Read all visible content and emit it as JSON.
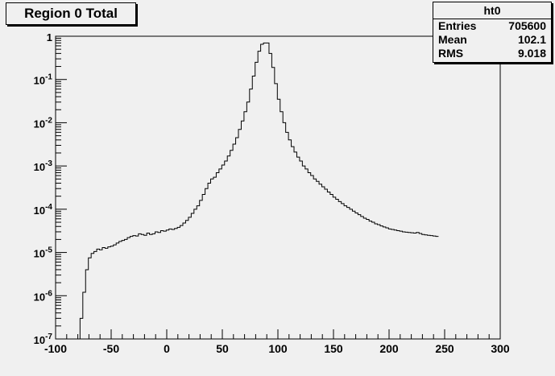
{
  "title": "Region 0 Total",
  "stats": {
    "name": "ht0",
    "rows": [
      {
        "label": "Entries",
        "value": "705600"
      },
      {
        "label": "Mean",
        "value": "102.1"
      },
      {
        "label": "RMS",
        "value": "9.018"
      }
    ]
  },
  "chart_data": {
    "type": "histogram",
    "title": "Region 0 Total",
    "xlim": [
      -100,
      300
    ],
    "ylim": [
      1e-07,
      1
    ],
    "ylog": true,
    "xticks": [
      -100,
      -50,
      0,
      50,
      100,
      150,
      200,
      250,
      300
    ],
    "xtick_labels": [
      "-100",
      "-50",
      "0",
      "50",
      "100",
      "150",
      "200",
      "250",
      "300"
    ],
    "yticks": [
      1e-07,
      1e-06,
      1e-05,
      0.0001,
      0.001,
      0.01,
      0.1,
      1
    ],
    "ytick_labels": [
      {
        "base": "10",
        "exp": "-7"
      },
      {
        "base": "10",
        "exp": "-6"
      },
      {
        "base": "10",
        "exp": "-5"
      },
      {
        "base": "10",
        "exp": "-4"
      },
      {
        "base": "10",
        "exp": "-3"
      },
      {
        "base": "10",
        "exp": "-2"
      },
      {
        "base": "10",
        "exp": "-1"
      },
      {
        "base": "1",
        "exp": ""
      }
    ],
    "bin_width": 2.5,
    "bin_start": -78,
    "values": [
      3e-07,
      1.2e-06,
      4e-06,
      7.5e-06,
      9.5e-06,
      1.05e-05,
      1.2e-05,
      1.15e-05,
      1.3e-05,
      1.25e-05,
      1.35e-05,
      1.4e-05,
      1.5e-05,
      1.65e-05,
      1.8e-05,
      1.9e-05,
      2e-05,
      2.2e-05,
      2.35e-05,
      2.45e-05,
      2.4e-05,
      2.7e-05,
      2.6e-05,
      2.5e-05,
      2.8e-05,
      2.6e-05,
      2.7e-05,
      3e-05,
      2.9e-05,
      3.2e-05,
      3.1e-05,
      3.3e-05,
      3.5e-05,
      3.4e-05,
      3.6e-05,
      3.8e-05,
      4.2e-05,
      4.8e-05,
      5.5e-05,
      6.5e-05,
      8e-05,
      0.0001,
      0.00012,
      0.00016,
      0.00022,
      0.0003,
      0.0004,
      0.0005,
      0.00055,
      0.0007,
      0.00085,
      0.00105,
      0.0013,
      0.0017,
      0.0023,
      0.0032,
      0.0045,
      0.007,
      0.011,
      0.018,
      0.03,
      0.06,
      0.12,
      0.25,
      0.45,
      0.65,
      0.7,
      0.7,
      0.4,
      0.19,
      0.08,
      0.035,
      0.018,
      0.01,
      0.006,
      0.004,
      0.0028,
      0.0021,
      0.0016,
      0.0013,
      0.001,
      0.00085,
      0.0007,
      0.0006,
      0.0005,
      0.00044,
      0.00038,
      0.00033,
      0.00029,
      0.00025,
      0.00022,
      0.00019,
      0.00017,
      0.00015,
      0.000135,
      0.00012,
      0.00011,
      0.0001,
      9e-05,
      8.2e-05,
      7.5e-05,
      6.8e-05,
      6.2e-05,
      5.8e-05,
      5.3e-05,
      5e-05,
      4.6e-05,
      4.4e-05,
      4.1e-05,
      3.9e-05,
      3.7e-05,
      3.5e-05,
      3.4e-05,
      3.3e-05,
      3.2e-05,
      3.1e-05,
      3e-05,
      2.95e-05,
      2.9e-05,
      2.85e-05,
      2.8e-05,
      2.9e-05,
      2.75e-05,
      2.6e-05,
      2.55e-05,
      2.5e-05,
      2.45e-05,
      2.4e-05,
      2.35e-05
    ]
  }
}
